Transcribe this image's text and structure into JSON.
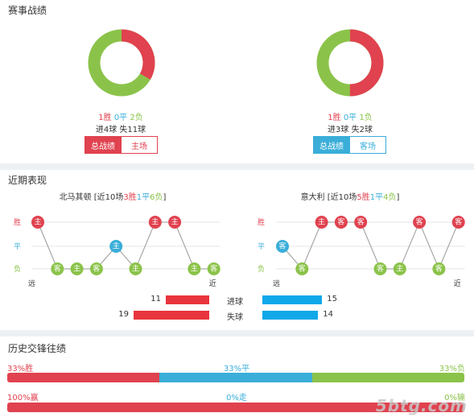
{
  "season": {
    "title": "赛事战绩",
    "left": {
      "record": {
        "win": "1胜",
        "draw": "0平",
        "loss": "2负"
      },
      "goals": "进4球 失11球",
      "tabs": [
        "总战绩",
        "主场"
      ],
      "donut": {
        "win": 1,
        "draw": 0,
        "loss": 2
      }
    },
    "right": {
      "record": {
        "win": "1胜",
        "draw": "0平",
        "loss": "1负"
      },
      "goals": "进3球 失2球",
      "tabs": [
        "总战绩",
        "客场"
      ],
      "donut": {
        "win": 1,
        "draw": 0,
        "loss": 1
      }
    }
  },
  "recent": {
    "title": "近期表现",
    "left_team": {
      "name": "北马其顿",
      "prefix": "[近10场",
      "win": "3胜",
      "draw": "1平",
      "loss": "6负",
      "suffix": "]",
      "matches": [
        {
          "result": "W",
          "venue": "主"
        },
        {
          "result": "L",
          "venue": "客"
        },
        {
          "result": "L",
          "venue": "主"
        },
        {
          "result": "L",
          "venue": "客"
        },
        {
          "result": "D",
          "venue": "主"
        },
        {
          "result": "L",
          "venue": "主"
        },
        {
          "result": "W",
          "venue": "主"
        },
        {
          "result": "W",
          "venue": "主"
        },
        {
          "result": "L",
          "venue": "主"
        },
        {
          "result": "L",
          "venue": "客"
        }
      ]
    },
    "right_team": {
      "name": "意大利",
      "prefix": "[近10场",
      "win": "5胜",
      "draw": "1平",
      "loss": "4负",
      "suffix": "]",
      "matches": [
        {
          "result": "D",
          "venue": "客"
        },
        {
          "result": "L",
          "venue": "客"
        },
        {
          "result": "W",
          "venue": "主"
        },
        {
          "result": "W",
          "venue": "客"
        },
        {
          "result": "W",
          "venue": "客"
        },
        {
          "result": "L",
          "venue": "客"
        },
        {
          "result": "L",
          "venue": "主"
        },
        {
          "result": "W",
          "venue": "客"
        },
        {
          "result": "L",
          "venue": "客"
        },
        {
          "result": "W",
          "venue": "客"
        }
      ]
    },
    "y_labels": {
      "win": "胜",
      "draw": "平",
      "loss": "负"
    },
    "x_labels": {
      "far": "远",
      "near": "近"
    },
    "goals": {
      "scored_label": "进球",
      "conceded_label": "失球",
      "left_scored": 11,
      "left_conceded": 19,
      "right_scored": 15,
      "right_conceded": 14,
      "max": 19
    }
  },
  "h2h": {
    "title": "历史交锋往绩",
    "row1": {
      "left": "33%胜",
      "mid": "33%平",
      "right": "33%负",
      "win": 33,
      "draw": 33,
      "loss": 33
    },
    "row2": {
      "left": "100%赢",
      "mid": "0%走",
      "right": "0%输",
      "win": 100,
      "draw": 0,
      "loss": 0
    }
  },
  "watermark": "5btg.com",
  "colors": {
    "win": "#e0424f",
    "draw": "#3aaed9",
    "loss": "#8bc34a",
    "goal_red": "#e8353d",
    "goal_blue": "#10a8e8"
  }
}
